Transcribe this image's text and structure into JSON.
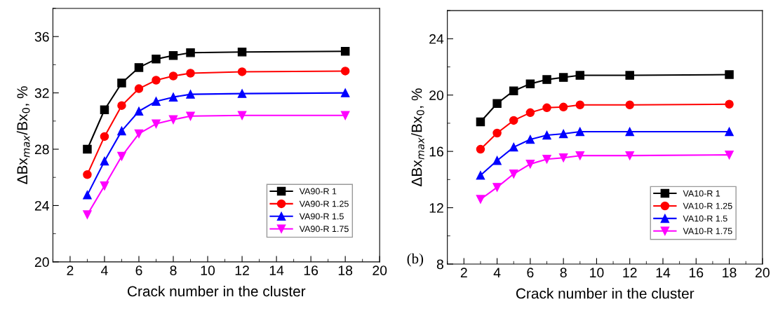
{
  "chart_data": [
    {
      "type": "line",
      "xlabel": "Crack number in the cluster",
      "ylabel": "ΔBx$_{max}$/Bx$_{0}$, %",
      "xlim": [
        1,
        20
      ],
      "xticks": [
        2,
        4,
        6,
        8,
        10,
        12,
        14,
        16,
        18,
        20
      ],
      "ylim": [
        20,
        38
      ],
      "yticks": [
        20,
        24,
        28,
        32,
        36
      ],
      "grid": false,
      "legend": "bottom right",
      "line_style": "solid",
      "x": [
        3,
        4,
        5,
        6,
        7,
        8,
        9,
        12,
        18
      ],
      "series": [
        {
          "name": "VA90-R 1",
          "color": "#000000",
          "marker": "square",
          "values": [
            28.0,
            30.8,
            32.7,
            33.8,
            34.4,
            34.65,
            34.85,
            34.9,
            34.95
          ]
        },
        {
          "name": "VA90-R 1.25",
          "color": "#ff0000",
          "marker": "circle",
          "values": [
            26.2,
            28.9,
            31.1,
            32.3,
            32.9,
            33.2,
            33.4,
            33.5,
            33.55
          ]
        },
        {
          "name": "VA90-R 1.5",
          "color": "#0000ff",
          "marker": "triangle",
          "values": [
            24.75,
            27.15,
            29.3,
            30.7,
            31.4,
            31.7,
            31.9,
            31.95,
            32.0
          ]
        },
        {
          "name": "VA90-R 1.75",
          "color": "#ff00ff",
          "marker": "triangle-down",
          "values": [
            23.35,
            25.4,
            27.5,
            29.1,
            29.8,
            30.1,
            30.35,
            30.4,
            30.4
          ]
        }
      ]
    },
    {
      "type": "line",
      "xlabel": "Crack number in the cluster",
      "ylabel": "ΔBx$_{max}$/Bx$_{0}$, %",
      "xlim": [
        1,
        20
      ],
      "xticks": [
        2,
        4,
        6,
        8,
        10,
        12,
        14,
        16,
        18,
        20
      ],
      "ylim": [
        8,
        26
      ],
      "yticks": [
        8,
        12,
        16,
        20,
        24
      ],
      "grid": false,
      "legend": "bottom right",
      "line_style": "solid",
      "annotations": [
        "(b)"
      ],
      "x": [
        3,
        4,
        5,
        6,
        7,
        8,
        9,
        12,
        18
      ],
      "series": [
        {
          "name": "VA10-R 1",
          "color": "#000000",
          "marker": "square",
          "values": [
            18.1,
            19.4,
            20.3,
            20.8,
            21.1,
            21.25,
            21.4,
            21.4,
            21.45
          ]
        },
        {
          "name": "VA10-R 1.25",
          "color": "#ff0000",
          "marker": "circle",
          "values": [
            16.15,
            17.3,
            18.2,
            18.75,
            19.1,
            19.15,
            19.3,
            19.3,
            19.35
          ]
        },
        {
          "name": "VA10-R 1.5",
          "color": "#0000ff",
          "marker": "triangle",
          "values": [
            14.3,
            15.35,
            16.3,
            16.85,
            17.15,
            17.25,
            17.4,
            17.4,
            17.4
          ]
        },
        {
          "name": "VA10-R 1.75",
          "color": "#ff00ff",
          "marker": "triangle-down",
          "values": [
            12.6,
            13.45,
            14.4,
            15.1,
            15.45,
            15.55,
            15.7,
            15.7,
            15.75
          ]
        }
      ]
    }
  ]
}
